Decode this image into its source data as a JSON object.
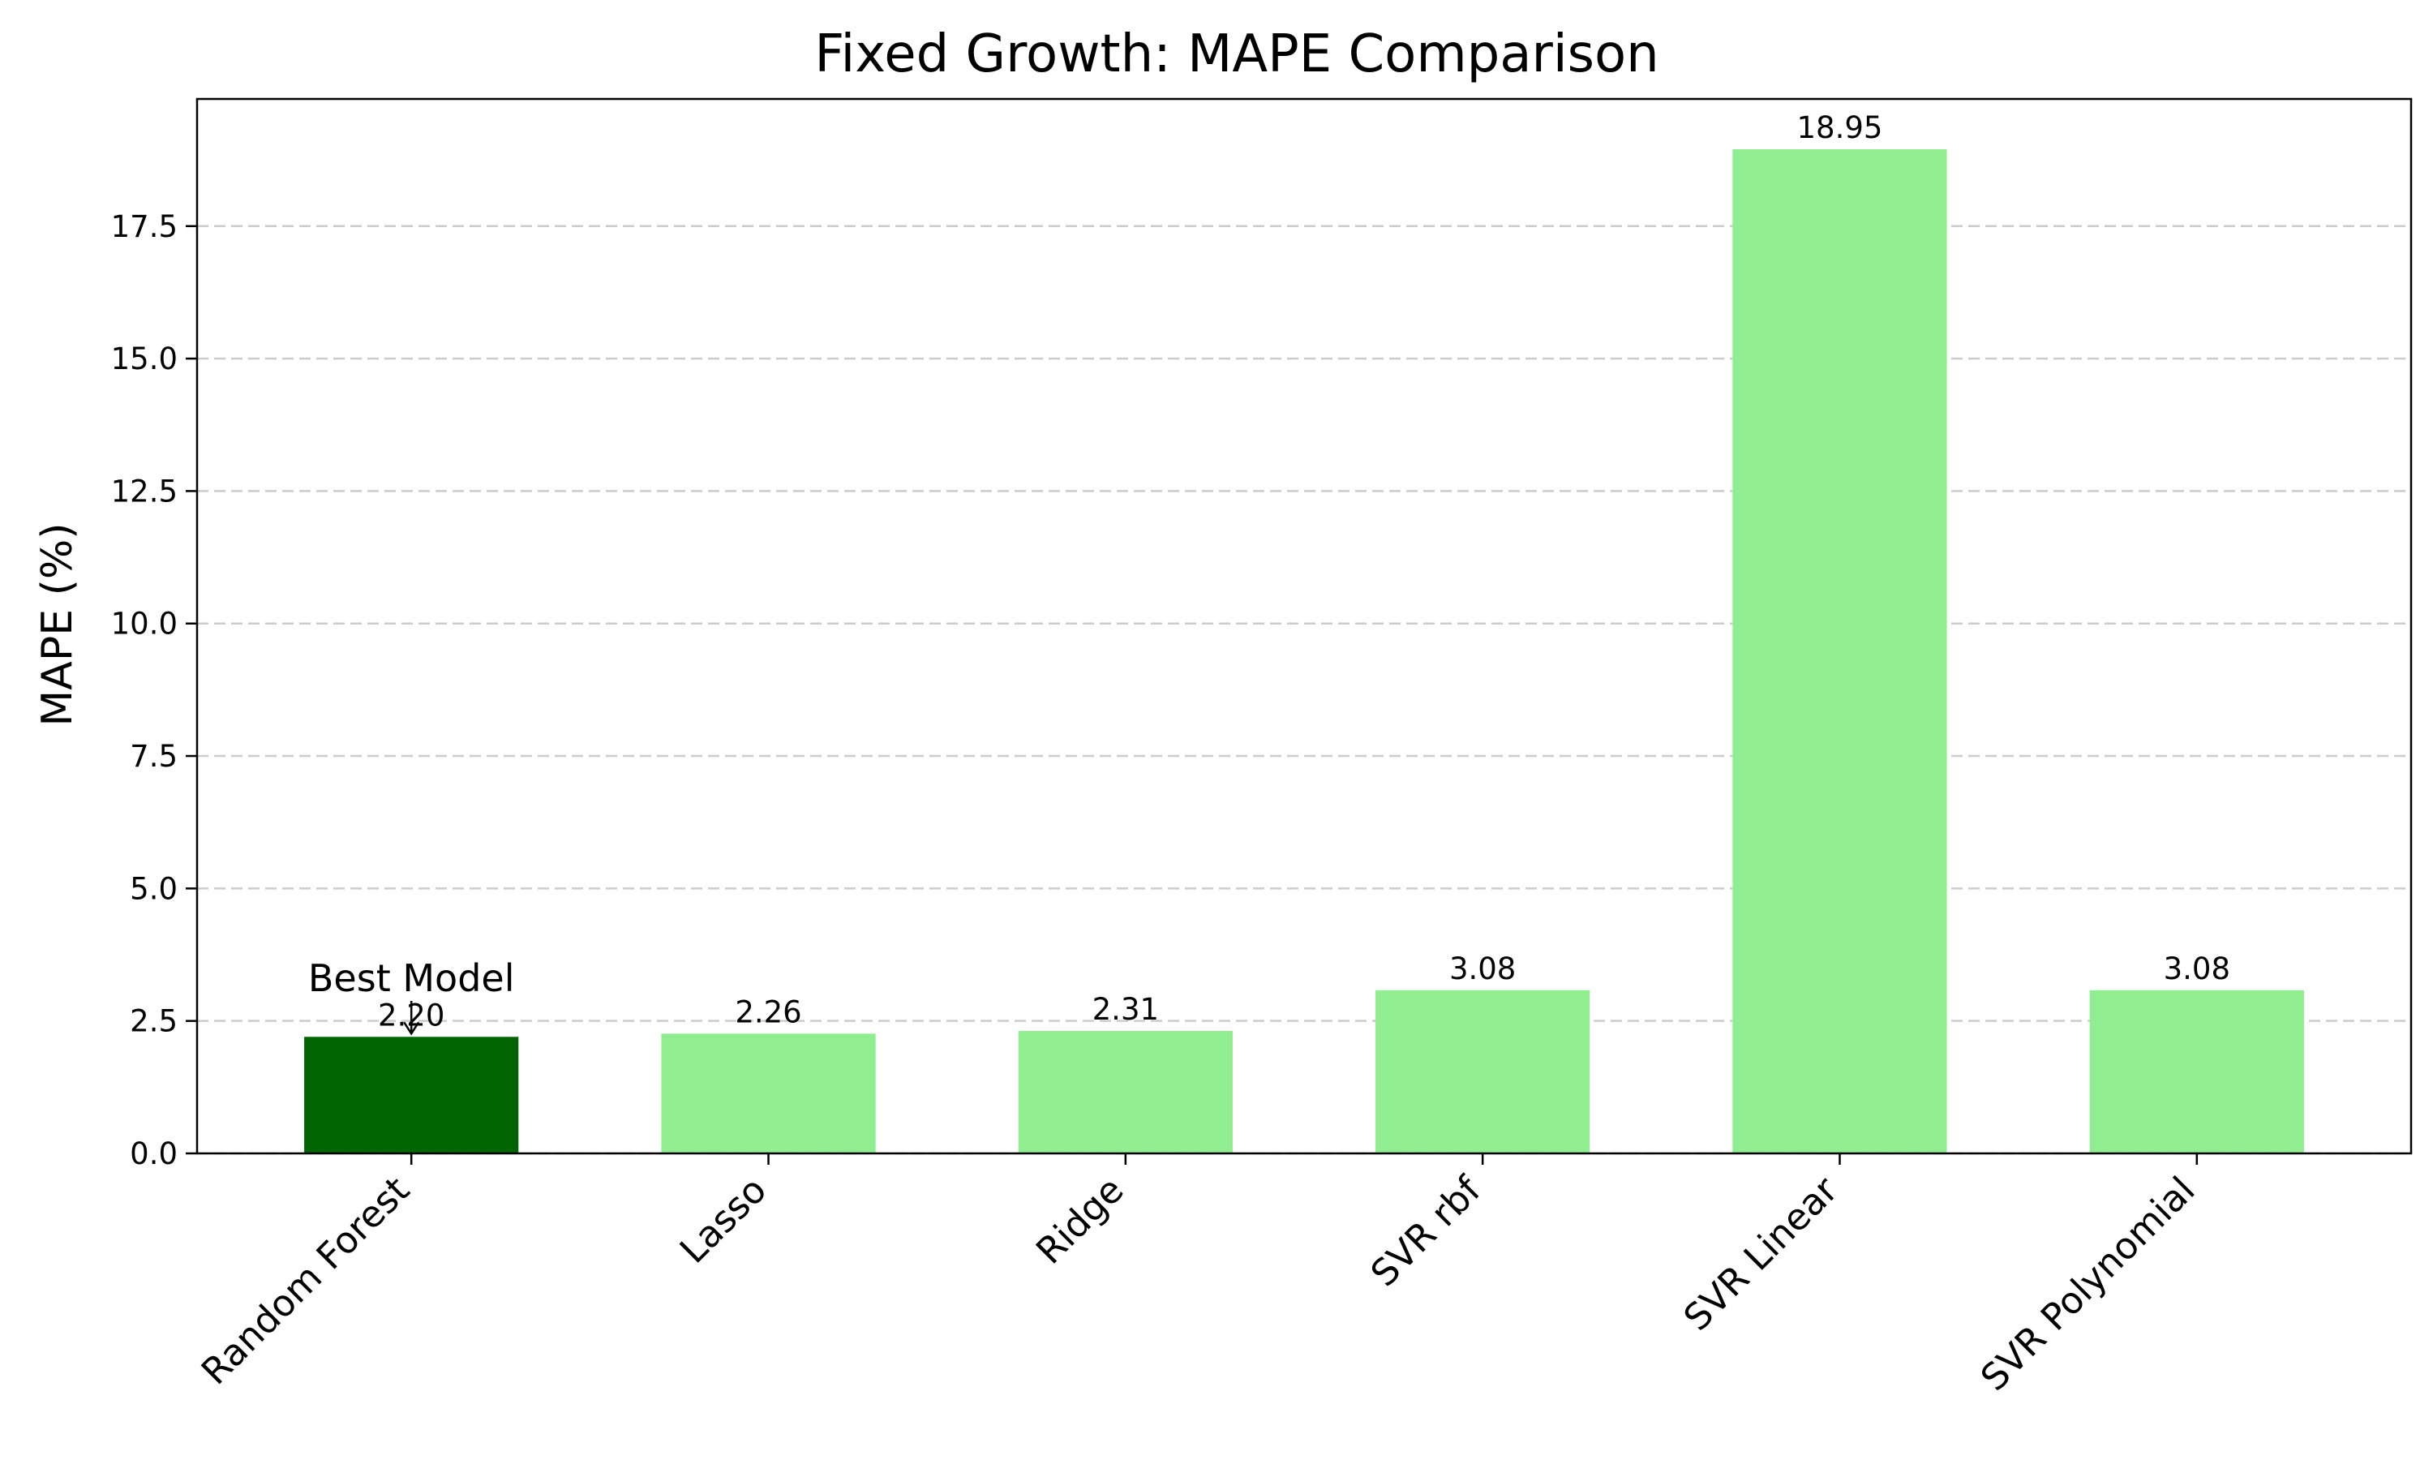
{
  "chart_data": {
    "type": "bar",
    "title": "Fixed Growth: MAPE Comparison",
    "xlabel": "",
    "ylabel": "MAPE (%)",
    "categories": [
      "Random Forest",
      "Lasso",
      "Ridge",
      "SVR rbf",
      "SVR Linear",
      "SVR Polynomial"
    ],
    "values": [
      2.2,
      2.26,
      2.31,
      3.08,
      18.95,
      3.08
    ],
    "value_labels": [
      "2.20",
      "2.26",
      "2.31",
      "3.08",
      "18.95",
      "3.08"
    ],
    "ylim": [
      0,
      19.9
    ],
    "yticks": [
      0.0,
      2.5,
      5.0,
      7.5,
      10.0,
      12.5,
      15.0,
      17.5
    ],
    "ytick_labels": [
      "0.0",
      "2.5",
      "5.0",
      "7.5",
      "10.0",
      "12.5",
      "15.0",
      "17.5"
    ],
    "grid": "y-dashed",
    "annotation": {
      "text": "Best Model",
      "category": "Random Forest"
    },
    "colors": {
      "best": "#006400",
      "other": "#90ee90",
      "grid": "#cccccc",
      "axis": "#000000"
    }
  }
}
